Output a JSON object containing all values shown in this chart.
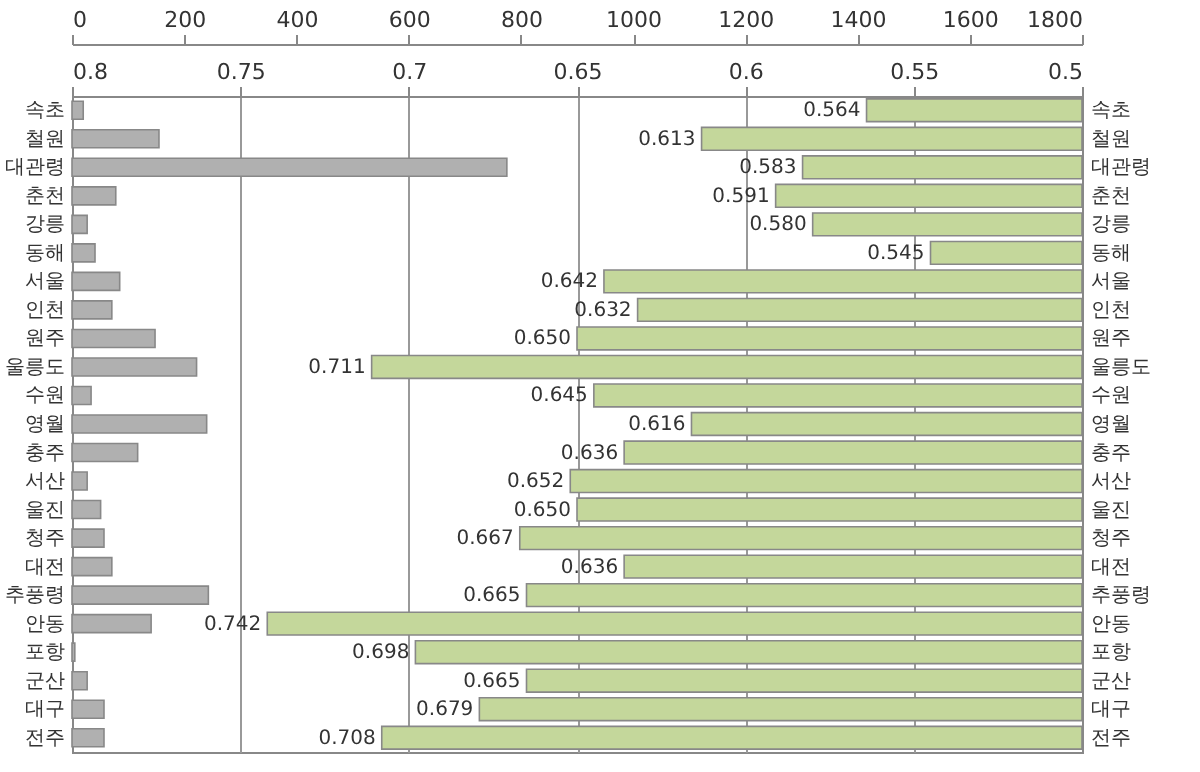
{
  "chart_data": {
    "type": "bar",
    "orientation": "horizontal",
    "categories": [
      "속초",
      "철원",
      "대관령",
      "춘천",
      "강릉",
      "동해",
      "서울",
      "인천",
      "원주",
      "울릉도",
      "수원",
      "영월",
      "충주",
      "서산",
      "울진",
      "청주",
      "대전",
      "추풍령",
      "안동",
      "포항",
      "군산",
      "대구",
      "전주"
    ],
    "series": [
      {
        "color": "#b0b0b0",
        "axis": "x2",
        "values": [
          20,
          155,
          775,
          78,
          27,
          41,
          85,
          71,
          148,
          222,
          34,
          240,
          117,
          27,
          51,
          57,
          71,
          243,
          141,
          5,
          27,
          57,
          57
        ]
      },
      {
        "color": "#c4d79b",
        "values": [
          0.564,
          0.613,
          0.583,
          0.591,
          0.58,
          0.545,
          0.642,
          0.632,
          0.65,
          0.711,
          0.645,
          0.616,
          0.636,
          0.652,
          0.65,
          0.667,
          0.636,
          0.665,
          0.742,
          0.698,
          0.665,
          0.679,
          0.708
        ],
        "value_labels": [
          "0.564",
          "0.613",
          "0.583",
          "0.591",
          "0.580",
          "0.545",
          "0.642",
          "0.632",
          "0.650",
          "0.711",
          "0.645",
          "0.616",
          "0.636",
          "0.652",
          "0.650",
          "0.667",
          "0.636",
          "0.665",
          "0.742",
          "0.698",
          "0.665",
          "0.679",
          "0.708"
        ]
      }
    ],
    "xlim": [
      0.8,
      0.5
    ],
    "xticks": [
      0.8,
      0.75,
      0.7,
      0.65,
      0.6,
      0.55,
      0.5
    ],
    "x2lim": [
      0,
      1800
    ],
    "x2ticks": [
      0,
      200,
      400,
      600,
      800,
      1000,
      1200,
      1400,
      1600,
      1800
    ],
    "grid": "x"
  }
}
